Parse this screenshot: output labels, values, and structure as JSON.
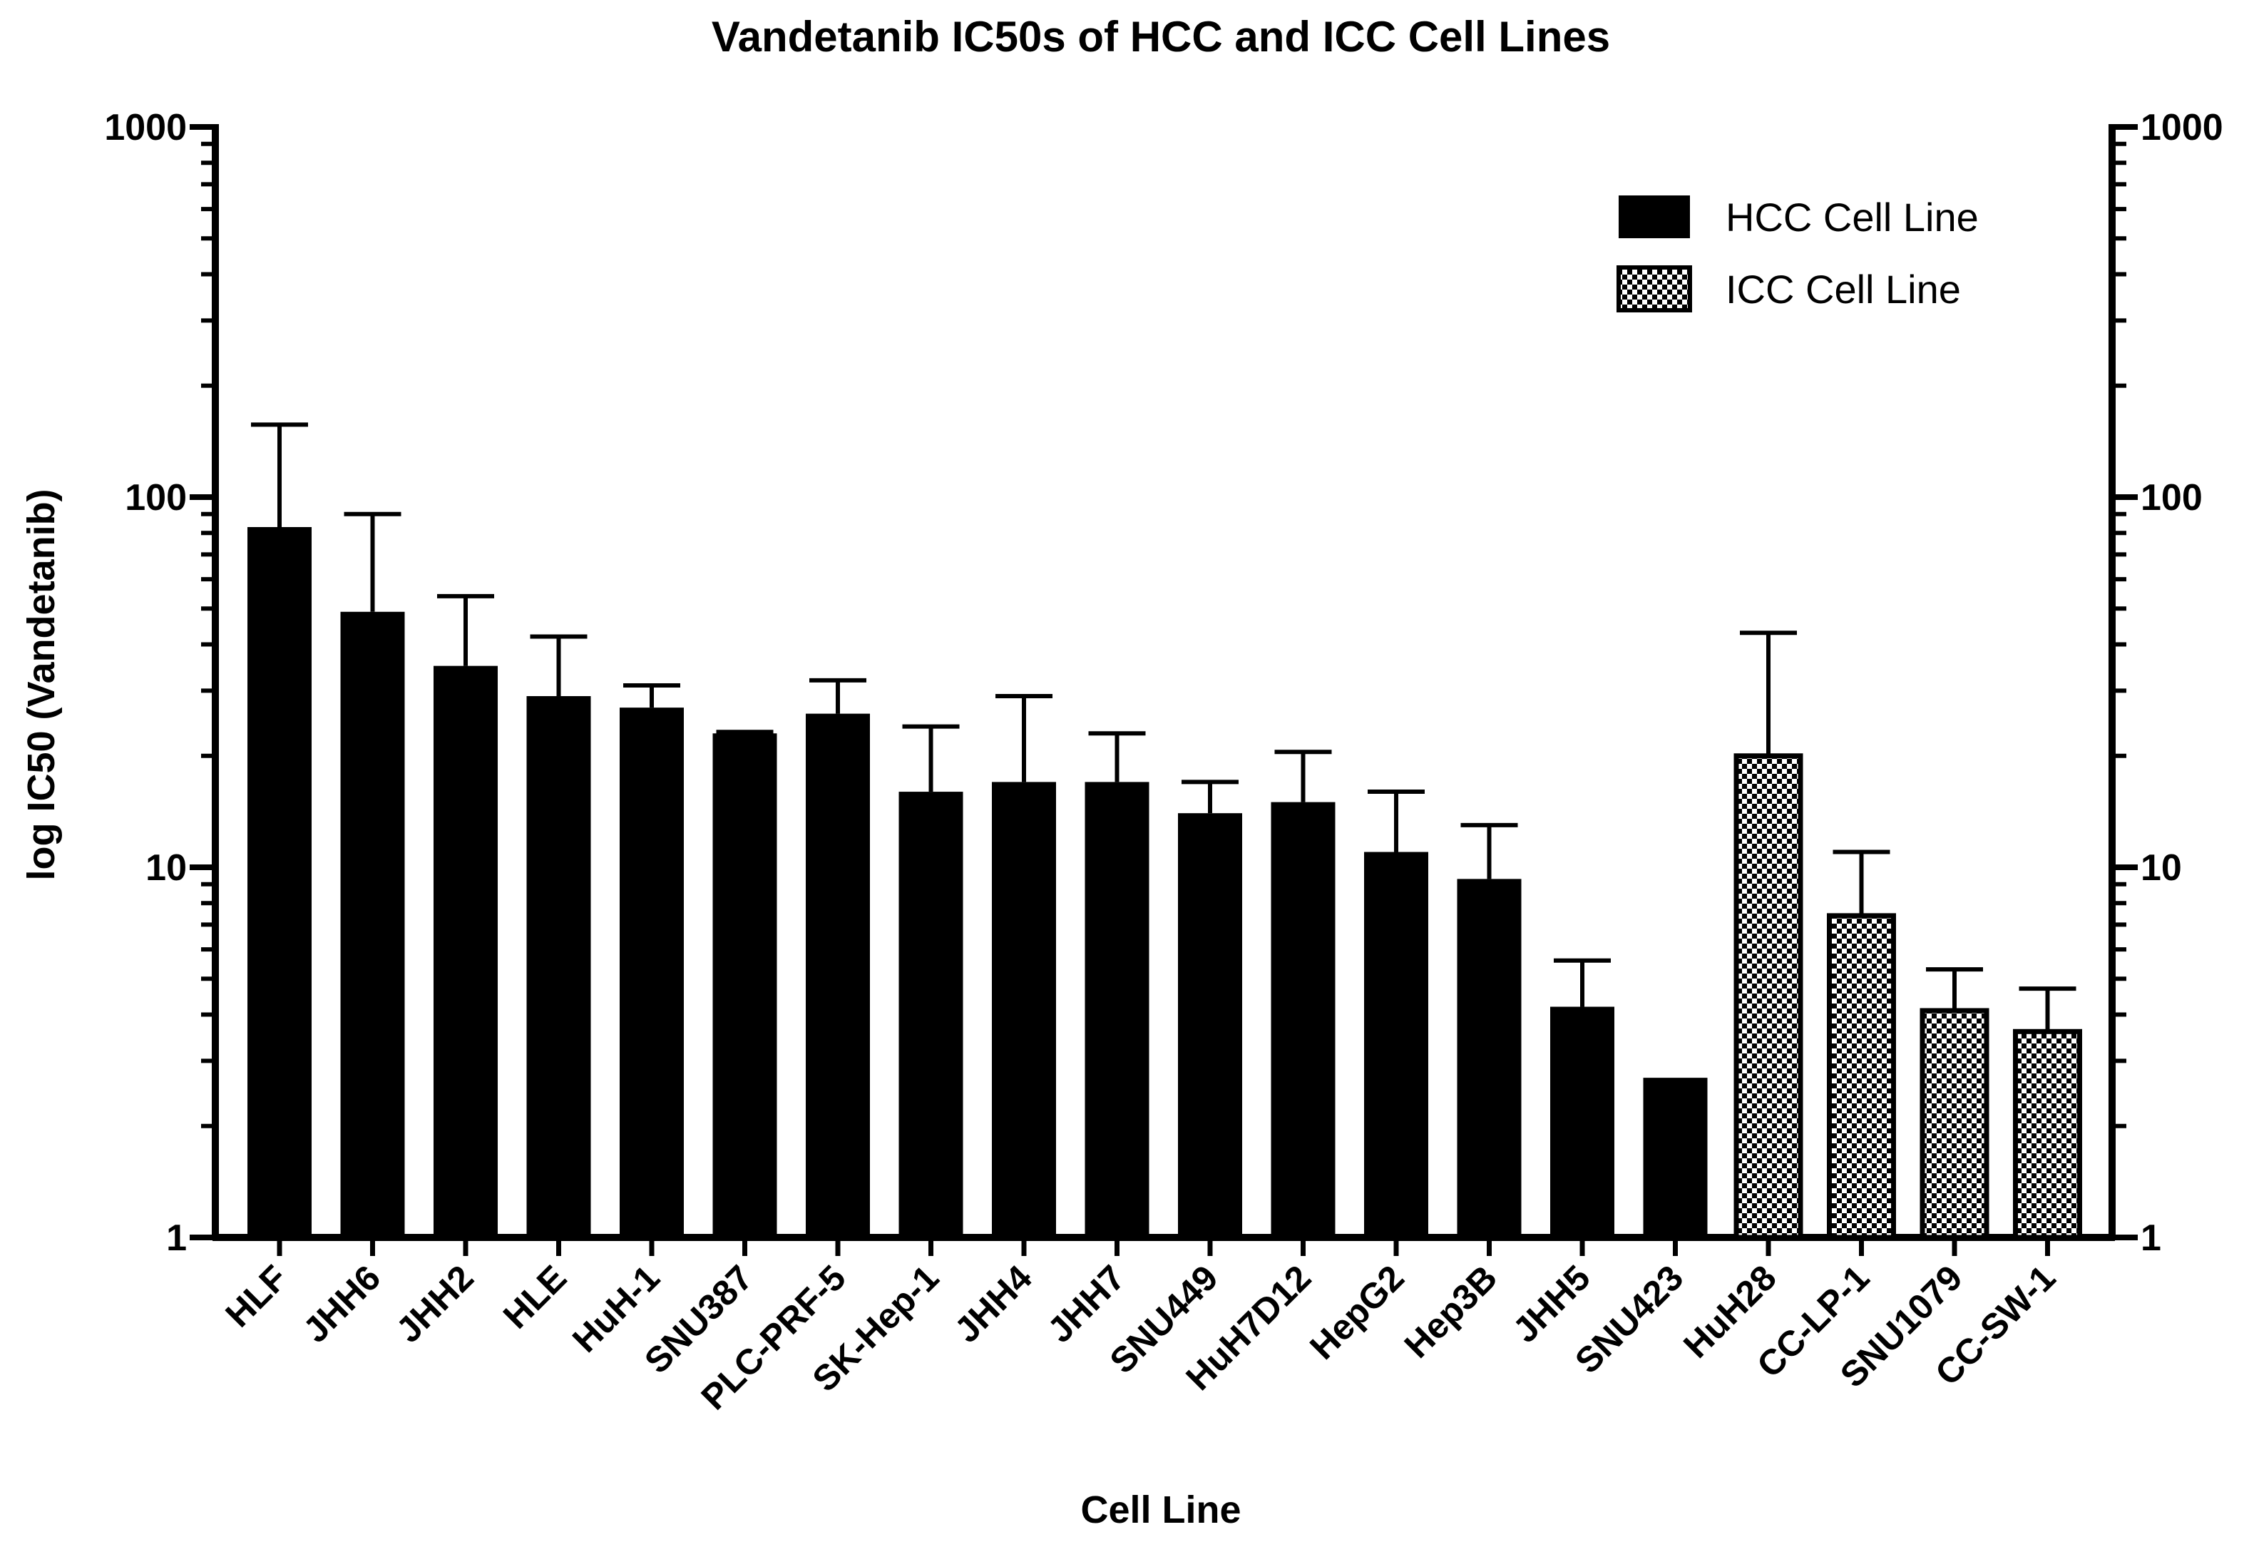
{
  "chart_data": {
    "type": "bar",
    "title": "Vandetanib IC50s of HCC and ICC Cell Lines",
    "xlabel": "Cell Line",
    "ylabel": "log IC50 (Vandetanib)",
    "yscale": "log",
    "ylim": [
      1,
      1000
    ],
    "y_ticks": [
      "1",
      "10",
      "100",
      "1000"
    ],
    "secondary_axis": "right",
    "legend_position": "top-right",
    "categories": [
      "HLF",
      "JHH6",
      "JHH2",
      "HLE",
      "HuH-1",
      "SNU387",
      "PLC-PRF-5",
      "SK-Hep-1",
      "JHH4",
      "JHH7",
      "SNU449",
      "HuH7D12",
      "HepG2",
      "Hep3B",
      "JHH5",
      "SNU423",
      "HuH28",
      "CC-LP-1",
      "SNU1079",
      "CC-SW-1"
    ],
    "values": [
      83,
      49,
      35,
      29,
      27,
      23,
      26,
      16,
      17,
      17,
      14,
      15,
      11,
      9.3,
      4.2,
      2.7,
      20,
      7.4,
      4.1,
      3.6
    ],
    "error_upper": [
      157,
      90,
      54,
      42,
      31,
      23.2,
      32,
      24,
      29,
      23,
      17,
      20.5,
      16,
      13,
      5.6,
      null,
      43,
      11,
      5.3,
      4.7
    ],
    "group": [
      "HCC",
      "HCC",
      "HCC",
      "HCC",
      "HCC",
      "HCC",
      "HCC",
      "HCC",
      "HCC",
      "HCC",
      "HCC",
      "HCC",
      "HCC",
      "HCC",
      "HCC",
      "HCC",
      "ICC",
      "ICC",
      "ICC",
      "ICC"
    ],
    "legend": [
      {
        "key": "HCC",
        "label": "HCC Cell Line",
        "fill": "solid"
      },
      {
        "key": "ICC",
        "label": "ICC Cell Line",
        "fill": "checker"
      }
    ],
    "colors": {
      "bar": "#000000",
      "checker_light": "#ffffff",
      "checker_dark": "#000000"
    }
  }
}
